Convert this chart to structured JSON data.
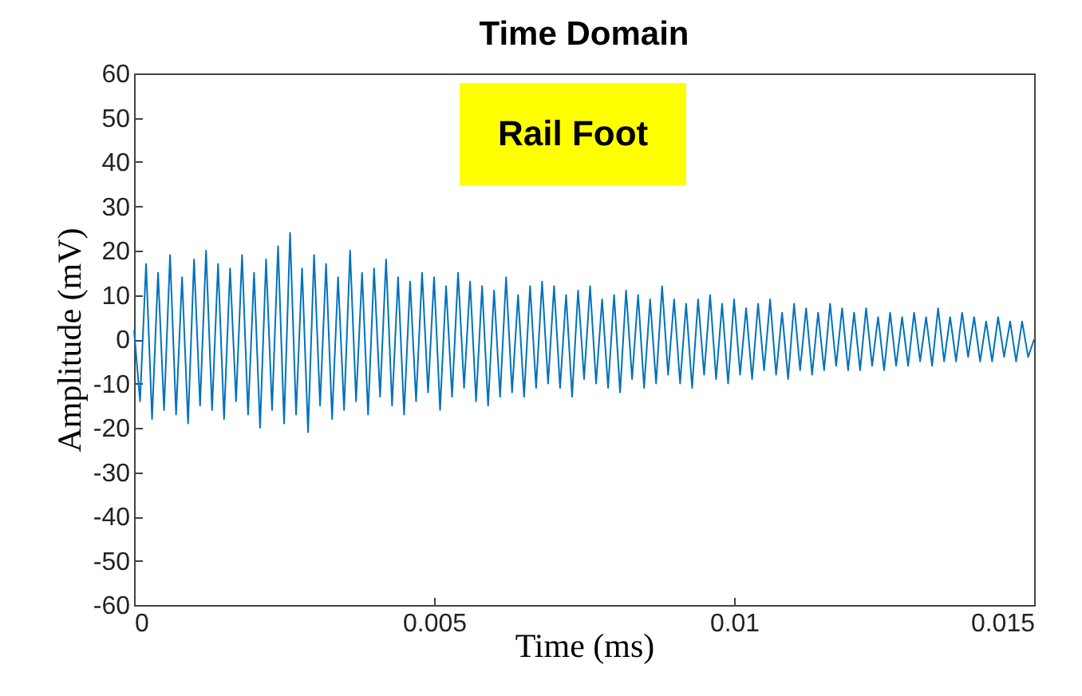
{
  "chart_data": {
    "type": "line",
    "title": "Time Domain",
    "xlabel": "Time (ms)",
    "ylabel": "Amplitude (mV)",
    "annotations": [
      "Rail Foot"
    ],
    "x": [
      0,
      0.0001,
      0.0002,
      0.0003,
      0.0004,
      0.0005,
      0.0006,
      0.0007,
      0.0008,
      0.0009,
      0.001,
      0.0011,
      0.0012,
      0.0013,
      0.0014,
      0.0015,
      0.0016,
      0.0017,
      0.0018,
      0.0019,
      0.002,
      0.0021,
      0.0022,
      0.0023,
      0.0024,
      0.0025,
      0.0026,
      0.0027,
      0.0028,
      0.0029,
      0.003,
      0.0031,
      0.0032,
      0.0033,
      0.0034,
      0.0035,
      0.0036,
      0.0037,
      0.0038,
      0.0039,
      0.004,
      0.0041,
      0.0042,
      0.0043,
      0.0044,
      0.0045,
      0.0046,
      0.0047,
      0.0048,
      0.0049,
      0.005,
      0.0051,
      0.0052,
      0.0053,
      0.0054,
      0.0055,
      0.0056,
      0.0057,
      0.0058,
      0.0059,
      0.006,
      0.0061,
      0.0062,
      0.0063,
      0.0064,
      0.0065,
      0.0066,
      0.0067,
      0.0068,
      0.0069,
      0.007,
      0.0071,
      0.0072,
      0.0073,
      0.0074,
      0.0075,
      0.0076,
      0.0077,
      0.0078,
      0.0079,
      0.008,
      0.0081,
      0.0082,
      0.0083,
      0.0084,
      0.0085,
      0.0086,
      0.0087,
      0.0088,
      0.0089,
      0.009,
      0.0091,
      0.0092,
      0.0093,
      0.0094,
      0.0095,
      0.0096,
      0.0097,
      0.0098,
      0.0099,
      0.01,
      0.0101,
      0.0102,
      0.0103,
      0.0104,
      0.0105,
      0.0106,
      0.0107,
      0.0108,
      0.0109,
      0.011,
      0.0111,
      0.0112,
      0.0113,
      0.0114,
      0.0115,
      0.0116,
      0.0117,
      0.0118,
      0.0119,
      0.012,
      0.0121,
      0.0122,
      0.0123,
      0.0124,
      0.0125,
      0.0126,
      0.0127,
      0.0128,
      0.0129,
      0.013,
      0.0131,
      0.0132,
      0.0133,
      0.0134,
      0.0135,
      0.0136,
      0.0137,
      0.0138,
      0.0139,
      0.014,
      0.0141,
      0.0142,
      0.0143,
      0.0144,
      0.0145,
      0.0146,
      0.0147,
      0.0148,
      0.0149,
      0.015
    ],
    "series": [
      {
        "color": "#0072bd",
        "values": [
          2,
          -14,
          17,
          -18,
          15,
          -16,
          19,
          -17,
          14,
          -19,
          18,
          -15,
          20,
          -16,
          17,
          -18,
          16,
          -14,
          19,
          -17,
          15,
          -20,
          18,
          -16,
          21,
          -19,
          24,
          -17,
          16,
          -21,
          19,
          -15,
          17,
          -18,
          14,
          -16,
          20,
          -14,
          15,
          -17,
          16,
          -13,
          18,
          -15,
          14,
          -17,
          13,
          -14,
          15,
          -12,
          14,
          -16,
          12,
          -13,
          15,
          -11,
          13,
          -14,
          12,
          -15,
          11,
          -13,
          14,
          -12,
          10,
          -13,
          12,
          -11,
          13,
          -10,
          12,
          -11,
          10,
          -13,
          11,
          -9,
          12,
          -10,
          9,
          -11,
          10,
          -12,
          11,
          -9,
          10,
          -11,
          9,
          -10,
          12,
          -8,
          9,
          -10,
          8,
          -11,
          9,
          -8,
          10,
          -9,
          8,
          -10,
          9,
          -8,
          7,
          -9,
          8,
          -7,
          9,
          -8,
          6,
          -9,
          8,
          -7,
          7,
          -8,
          6,
          -7,
          8,
          -6,
          7,
          -7,
          6,
          -7,
          7,
          -6,
          5,
          -7,
          6,
          -6,
          5,
          -6,
          6,
          -5,
          5,
          -6,
          7,
          -5,
          5,
          -5,
          6,
          -4,
          5,
          -5,
          4,
          -5,
          5,
          -4,
          4,
          -5,
          4,
          -4,
          0
        ]
      }
    ],
    "xlim": [
      0,
      0.015
    ],
    "xticks": [
      0,
      0.005,
      0.01,
      0.015
    ],
    "ylim": [
      -60,
      60
    ],
    "yticks": [
      -60,
      -50,
      -40,
      -30,
      -20,
      -10,
      0,
      10,
      20,
      30,
      40,
      50,
      60
    ]
  }
}
